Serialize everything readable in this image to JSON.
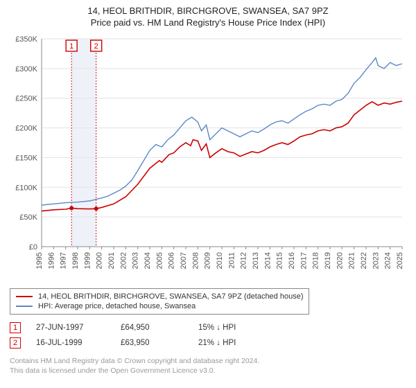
{
  "title_line1": "14, HEOL BRITHDIR, BIRCHGROVE, SWANSEA, SA7 9PZ",
  "title_line2": "Price paid vs. HM Land Registry's House Price Index (HPI)",
  "chart": {
    "type": "line",
    "background_color": "#ffffff",
    "grid_color": "#e2e2e2",
    "axis_color": "#888888",
    "text_color": "#555555",
    "label_fontsize": 11,
    "x_years": [
      1995,
      1996,
      1997,
      1998,
      1999,
      2000,
      2001,
      2002,
      2003,
      2004,
      2005,
      2006,
      2007,
      2008,
      2009,
      2010,
      2011,
      2012,
      2013,
      2014,
      2015,
      2016,
      2017,
      2018,
      2019,
      2020,
      2021,
      2022,
      2023,
      2024,
      2025
    ],
    "x_rotation": -90,
    "ylim": [
      0,
      350000
    ],
    "ytick_step": 50000,
    "ytick_labels": [
      "£0",
      "£50K",
      "£100K",
      "£150K",
      "£200K",
      "£250K",
      "£300K",
      "£350K"
    ],
    "highlight_band": {
      "from_year": 1997.49,
      "to_year": 1999.54,
      "color": "#eef2f8"
    },
    "sale_markers": [
      {
        "num": "1",
        "year": 1997.49,
        "value": 64950
      },
      {
        "num": "2",
        "year": 1999.54,
        "value": 63950
      }
    ],
    "marker_box_stroke": "#cc0000",
    "sale_line_color": "#cc0000",
    "series": [
      {
        "name": "price_paid",
        "label": "14, HEOL BRITHDIR, BIRCHGROVE, SWANSEA, SA7 9PZ (detached house)",
        "color": "#cc0000",
        "line_width": 1.6,
        "data": [
          [
            1995.0,
            60000
          ],
          [
            1996.0,
            62000
          ],
          [
            1997.0,
            63000
          ],
          [
            1997.49,
            64950
          ],
          [
            1998.0,
            64000
          ],
          [
            1999.0,
            63500
          ],
          [
            1999.54,
            63950
          ],
          [
            2000.0,
            66000
          ],
          [
            2001.0,
            72000
          ],
          [
            2002.0,
            84000
          ],
          [
            2003.0,
            105000
          ],
          [
            2004.0,
            132000
          ],
          [
            2004.8,
            145000
          ],
          [
            2005.0,
            142000
          ],
          [
            2005.6,
            155000
          ],
          [
            2006.0,
            158000
          ],
          [
            2006.5,
            168000
          ],
          [
            2007.0,
            175000
          ],
          [
            2007.4,
            170000
          ],
          [
            2007.6,
            180000
          ],
          [
            2008.0,
            178000
          ],
          [
            2008.3,
            162000
          ],
          [
            2008.7,
            173000
          ],
          [
            2009.0,
            150000
          ],
          [
            2009.5,
            158000
          ],
          [
            2010.0,
            165000
          ],
          [
            2010.5,
            160000
          ],
          [
            2011.0,
            158000
          ],
          [
            2011.5,
            152000
          ],
          [
            2012.0,
            156000
          ],
          [
            2012.5,
            160000
          ],
          [
            2013.0,
            158000
          ],
          [
            2013.5,
            162000
          ],
          [
            2014.0,
            168000
          ],
          [
            2014.5,
            172000
          ],
          [
            2015.0,
            175000
          ],
          [
            2015.5,
            172000
          ],
          [
            2016.0,
            178000
          ],
          [
            2016.5,
            185000
          ],
          [
            2017.0,
            188000
          ],
          [
            2017.5,
            190000
          ],
          [
            2018.0,
            195000
          ],
          [
            2018.5,
            197000
          ],
          [
            2019.0,
            195000
          ],
          [
            2019.5,
            200000
          ],
          [
            2020.0,
            202000
          ],
          [
            2020.5,
            208000
          ],
          [
            2021.0,
            222000
          ],
          [
            2021.5,
            230000
          ],
          [
            2022.0,
            238000
          ],
          [
            2022.5,
            244000
          ],
          [
            2023.0,
            238000
          ],
          [
            2023.5,
            242000
          ],
          [
            2024.0,
            240000
          ],
          [
            2024.5,
            243000
          ],
          [
            2025.0,
            245000
          ]
        ]
      },
      {
        "name": "hpi",
        "label": "HPI: Average price, detached house, Swansea",
        "color": "#5b87c7",
        "line_width": 1.4,
        "data": [
          [
            1995.0,
            70000
          ],
          [
            1996.0,
            72000
          ],
          [
            1997.0,
            74000
          ],
          [
            1998.0,
            75000
          ],
          [
            1999.0,
            77000
          ],
          [
            2000.0,
            82000
          ],
          [
            2000.5,
            85000
          ],
          [
            2001.0,
            90000
          ],
          [
            2001.5,
            95000
          ],
          [
            2002.0,
            102000
          ],
          [
            2002.5,
            112000
          ],
          [
            2003.0,
            128000
          ],
          [
            2003.5,
            145000
          ],
          [
            2004.0,
            162000
          ],
          [
            2004.5,
            172000
          ],
          [
            2005.0,
            168000
          ],
          [
            2005.5,
            180000
          ],
          [
            2006.0,
            188000
          ],
          [
            2006.5,
            200000
          ],
          [
            2007.0,
            212000
          ],
          [
            2007.5,
            218000
          ],
          [
            2008.0,
            210000
          ],
          [
            2008.3,
            195000
          ],
          [
            2008.7,
            205000
          ],
          [
            2009.0,
            180000
          ],
          [
            2009.5,
            190000
          ],
          [
            2010.0,
            200000
          ],
          [
            2010.5,
            195000
          ],
          [
            2011.0,
            190000
          ],
          [
            2011.5,
            185000
          ],
          [
            2012.0,
            190000
          ],
          [
            2012.5,
            195000
          ],
          [
            2013.0,
            192000
          ],
          [
            2013.5,
            198000
          ],
          [
            2014.0,
            205000
          ],
          [
            2014.5,
            210000
          ],
          [
            2015.0,
            212000
          ],
          [
            2015.5,
            208000
          ],
          [
            2016.0,
            215000
          ],
          [
            2016.5,
            222000
          ],
          [
            2017.0,
            228000
          ],
          [
            2017.5,
            232000
          ],
          [
            2018.0,
            238000
          ],
          [
            2018.5,
            240000
          ],
          [
            2019.0,
            238000
          ],
          [
            2019.5,
            245000
          ],
          [
            2020.0,
            248000
          ],
          [
            2020.5,
            258000
          ],
          [
            2021.0,
            275000
          ],
          [
            2021.5,
            285000
          ],
          [
            2022.0,
            298000
          ],
          [
            2022.5,
            310000
          ],
          [
            2022.8,
            318000
          ],
          [
            2023.0,
            305000
          ],
          [
            2023.5,
            300000
          ],
          [
            2024.0,
            310000
          ],
          [
            2024.5,
            305000
          ],
          [
            2025.0,
            308000
          ]
        ]
      }
    ]
  },
  "legend": {
    "border_color": "#888888",
    "fontsize": 11,
    "items": [
      {
        "color": "#cc0000",
        "label": "14, HEOL BRITHDIR, BIRCHGROVE, SWANSEA, SA7 9PZ (detached house)"
      },
      {
        "color": "#5b87c7",
        "label": "HPI: Average price, detached house, Swansea"
      }
    ]
  },
  "sales_table": {
    "fontsize": 11.5,
    "numbox_color": "#cc0000",
    "rows": [
      {
        "num": "1",
        "date": "27-JUN-1997",
        "price": "£64,950",
        "delta": "15% ↓ HPI"
      },
      {
        "num": "2",
        "date": "16-JUL-1999",
        "price": "£63,950",
        "delta": "21% ↓ HPI"
      }
    ]
  },
  "footer_line1": "Contains HM Land Registry data © Crown copyright and database right 2024.",
  "footer_line2": "This data is licensed under the Open Government Licence v3.0."
}
